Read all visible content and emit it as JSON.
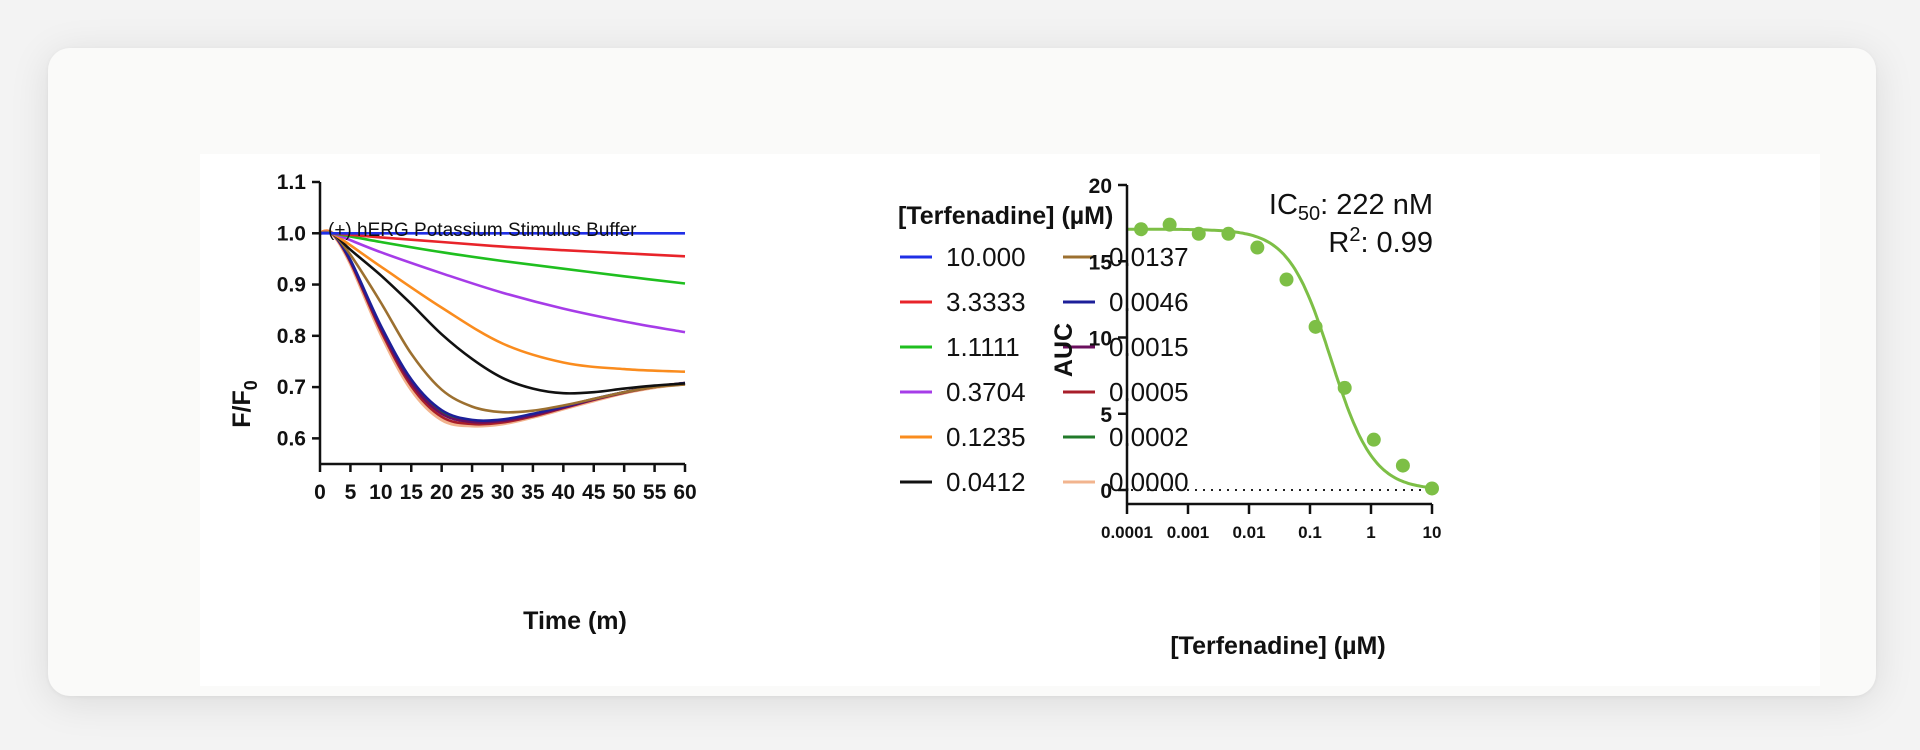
{
  "chart_data": [
    {
      "type": "line",
      "annotation": "(+) hERG Potassium Stimulus Buffer",
      "xlabel": "Time (m)",
      "ylabel_main": "F/F",
      "ylabel_sub": "0",
      "xlim": [
        0,
        60
      ],
      "ylim": [
        0.55,
        1.1
      ],
      "xticks": [
        0,
        5,
        10,
        15,
        20,
        25,
        30,
        35,
        40,
        45,
        50,
        55,
        60
      ],
      "yticks": [
        0.6,
        0.7,
        0.8,
        0.9,
        1.0,
        1.1
      ],
      "ytick_labels": [
        "0.6",
        "0.7",
        "0.8",
        "0.9",
        "1.0",
        "1.1"
      ],
      "legend_title": "[Terfenadine] (µM)",
      "series": [
        {
          "name": "10.000",
          "color": "#1f2fe6",
          "x": [
            0,
            2,
            10,
            20,
            30,
            40,
            50,
            60
          ],
          "y": [
            1.0,
            1.0,
            1.0,
            1.0,
            1.0,
            1.0,
            1.0,
            1.0
          ]
        },
        {
          "name": "3.3333",
          "color": "#e8242a",
          "x": [
            0,
            2,
            10,
            20,
            30,
            40,
            50,
            60
          ],
          "y": [
            1.0,
            1.0,
            0.992,
            0.983,
            0.974,
            0.967,
            0.961,
            0.955
          ]
        },
        {
          "name": "1.1111",
          "color": "#1fbf1f",
          "x": [
            0,
            2,
            10,
            20,
            30,
            40,
            50,
            60
          ],
          "y": [
            1.0,
            1.0,
            0.983,
            0.963,
            0.946,
            0.931,
            0.916,
            0.902
          ]
        },
        {
          "name": "0.3704",
          "color": "#a63ce8",
          "x": [
            0,
            2,
            10,
            20,
            30,
            40,
            50,
            60
          ],
          "y": [
            1.0,
            1.0,
            0.963,
            0.922,
            0.884,
            0.853,
            0.828,
            0.807
          ]
        },
        {
          "name": "0.1235",
          "color": "#fa8c1e",
          "x": [
            0,
            2,
            10,
            20,
            30,
            40,
            50,
            60
          ],
          "y": [
            1.0,
            1.0,
            0.935,
            0.855,
            0.785,
            0.748,
            0.735,
            0.73
          ]
        },
        {
          "name": "0.0412",
          "color": "#111111",
          "x": [
            0,
            2,
            5,
            10,
            15,
            20,
            25,
            30,
            35,
            40,
            45,
            50,
            55,
            60
          ],
          "y": [
            1.0,
            1.0,
            0.968,
            0.918,
            0.862,
            0.803,
            0.755,
            0.718,
            0.697,
            0.688,
            0.69,
            0.697,
            0.703,
            0.707
          ]
        },
        {
          "name": "0.0137",
          "color": "#9c7030",
          "x": [
            0,
            2,
            5,
            10,
            15,
            20,
            25,
            30,
            35,
            40,
            45,
            50,
            55,
            60
          ],
          "y": [
            1.0,
            1.0,
            0.958,
            0.865,
            0.765,
            0.695,
            0.662,
            0.651,
            0.654,
            0.664,
            0.677,
            0.69,
            0.7,
            0.705
          ]
        },
        {
          "name": "0.0046",
          "color": "#1c1f99",
          "x": [
            0,
            2,
            5,
            10,
            15,
            20,
            25,
            30,
            35,
            40,
            45,
            50,
            55,
            60
          ],
          "y": [
            1.0,
            1.0,
            0.948,
            0.82,
            0.715,
            0.655,
            0.636,
            0.637,
            0.648,
            0.662,
            0.677,
            0.69,
            0.701,
            0.708
          ]
        },
        {
          "name": "0.0015",
          "color": "#6b0f5e",
          "x": [
            0,
            2,
            5,
            10,
            15,
            20,
            25,
            30,
            35,
            40,
            45,
            50,
            55,
            60
          ],
          "y": [
            1.0,
            1.0,
            0.946,
            0.815,
            0.708,
            0.648,
            0.632,
            0.634,
            0.645,
            0.66,
            0.676,
            0.69,
            0.701,
            0.708
          ]
        },
        {
          "name": "0.0005",
          "color": "#a81e2a",
          "x": [
            0,
            2,
            5,
            10,
            15,
            20,
            25,
            30,
            35,
            40,
            45,
            50,
            55,
            60
          ],
          "y": [
            1.0,
            1.0,
            0.944,
            0.81,
            0.702,
            0.642,
            0.628,
            0.631,
            0.643,
            0.659,
            0.675,
            0.689,
            0.7,
            0.707
          ]
        },
        {
          "name": "0.0002",
          "color": "#217a2a",
          "x": [
            0,
            2,
            5,
            10,
            15,
            20,
            25,
            30,
            35,
            40,
            45,
            50,
            55,
            60
          ],
          "y": [
            1.0,
            1.0,
            0.947,
            0.817,
            0.71,
            0.65,
            0.634,
            0.636,
            0.647,
            0.661,
            0.676,
            0.69,
            0.701,
            0.708
          ]
        },
        {
          "name": "0.0000",
          "color": "#f2b48e",
          "x": [
            0,
            2,
            5,
            10,
            15,
            20,
            25,
            30,
            35,
            40,
            45,
            50,
            55,
            60
          ],
          "y": [
            1.0,
            1.0,
            0.942,
            0.805,
            0.696,
            0.637,
            0.625,
            0.629,
            0.642,
            0.658,
            0.674,
            0.689,
            0.7,
            0.707
          ]
        }
      ]
    },
    {
      "type": "scatter",
      "xscale": "log",
      "xlabel": "[Terfenadine] (µM)",
      "ylabel": "AUC",
      "xlim": [
        0.0001,
        10
      ],
      "ylim": [
        0,
        20
      ],
      "xticks": [
        0.0001,
        0.001,
        0.01,
        0.1,
        1,
        10
      ],
      "xtick_labels": [
        "0.0001",
        "0.001",
        "0.01",
        "0.1",
        "1",
        "10"
      ],
      "yticks": [
        0,
        5,
        10,
        15,
        20
      ],
      "color": "#7dbf46",
      "points": {
        "x": [
          0.00017,
          0.0005,
          0.0015,
          0.0046,
          0.0137,
          0.0412,
          0.1235,
          0.3704,
          1.1111,
          3.3333,
          10.0
        ],
        "y": [
          17.1,
          17.4,
          16.8,
          16.8,
          15.9,
          13.8,
          10.7,
          6.7,
          3.3,
          1.6,
          0.1
        ]
      },
      "fit": {
        "model": "4PL",
        "top": 17.1,
        "bottom": 0,
        "ic50": 0.222,
        "hill": 1.25
      },
      "baseline": {
        "y": 0,
        "style": "dotted"
      },
      "stats": {
        "ic50_prefix": "IC",
        "ic50_sub": "50",
        "ic50_value": ": 222 nM",
        "r2_prefix": "R",
        "r2_sup": "2",
        "r2_value": ": 0.99"
      }
    }
  ]
}
